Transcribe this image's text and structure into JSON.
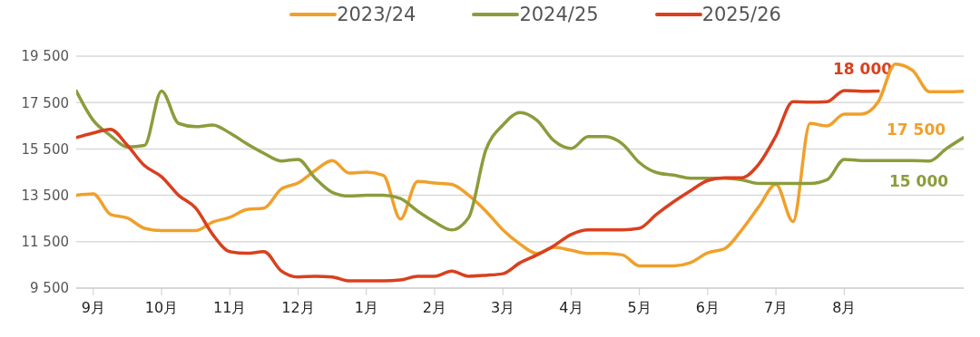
{
  "chart_data": {
    "type": "line",
    "categories": [
      null,
      "9月",
      null,
      null,
      null,
      "10月",
      null,
      null,
      null,
      "11月",
      null,
      null,
      null,
      "12月",
      null,
      null,
      null,
      "1月",
      null,
      null,
      null,
      "2月",
      null,
      null,
      null,
      "3月",
      null,
      null,
      null,
      "4月",
      null,
      null,
      null,
      "5月",
      null,
      null,
      null,
      "6月",
      null,
      null,
      null,
      "7月",
      null,
      null,
      null,
      "8月",
      null,
      null,
      null,
      null,
      null,
      null,
      null
    ],
    "ylim": [
      9500,
      19500
    ],
    "yticks": [
      {
        "value": 9500,
        "label": "9 500"
      },
      {
        "value": 11500,
        "label": "11 500"
      },
      {
        "value": 13500,
        "label": "13 500"
      },
      {
        "value": 15500,
        "label": "15 500"
      },
      {
        "value": 17500,
        "label": "17 500"
      },
      {
        "value": 19500,
        "label": "19 500"
      }
    ],
    "grid": "y",
    "legend": "top",
    "marker": "none",
    "line_style": "solid",
    "annotations": [
      "17 500",
      "15 000",
      "18 000"
    ],
    "series": [
      {
        "name": "2023/24",
        "color": "#f0a02a",
        "values": [
          13500,
          13560,
          12680,
          12520,
          12080,
          11980,
          11980,
          11980,
          12350,
          12550,
          12890,
          12950,
          13760,
          14030,
          14570,
          15000,
          14460,
          14500,
          14360,
          12480,
          14100,
          14030,
          13970,
          13500,
          12820,
          12010,
          11400,
          10990,
          11260,
          11130,
          10990,
          10990,
          10930,
          10460,
          10460,
          10460,
          10600,
          11020,
          11200,
          12010,
          13010,
          13970,
          12370,
          16600,
          16490,
          17000,
          17000,
          17540,
          19160,
          18890,
          17970,
          17970,
          17990
        ]
      },
      {
        "name": "2024/25",
        "color": "#8c9c3c",
        "values": [
          18000,
          16730,
          16080,
          15580,
          15650,
          18000,
          16600,
          16460,
          16530,
          16190,
          15720,
          15310,
          14980,
          15050,
          14240,
          13630,
          13470,
          13500,
          13500,
          13360,
          12820,
          12350,
          12010,
          12550,
          15450,
          16530,
          17070,
          16730,
          15850,
          15520,
          16030,
          16030,
          15720,
          14910,
          14480,
          14370,
          14240,
          14240,
          14240,
          14170,
          14010,
          14010,
          14010,
          14010,
          14170,
          15050,
          15000,
          15000,
          15000,
          15000,
          14980,
          15520,
          15990
        ]
      },
      {
        "name": "2025/26",
        "color": "#d9401e",
        "values": [
          15990,
          16190,
          16350,
          15650,
          14780,
          14300,
          13500,
          12950,
          11810,
          11070,
          11000,
          11070,
          10250,
          9980,
          10010,
          9980,
          9810,
          9810,
          9810,
          9850,
          10010,
          10010,
          10230,
          10010,
          10050,
          10120,
          10590,
          10930,
          11330,
          11810,
          12010,
          12010,
          12010,
          12080,
          12680,
          13220,
          13700,
          14140,
          14260,
          14260,
          14850,
          16060,
          17540,
          17520,
          17540,
          18020,
          17990,
          18000,
          null,
          null,
          null,
          null,
          null
        ]
      }
    ]
  }
}
